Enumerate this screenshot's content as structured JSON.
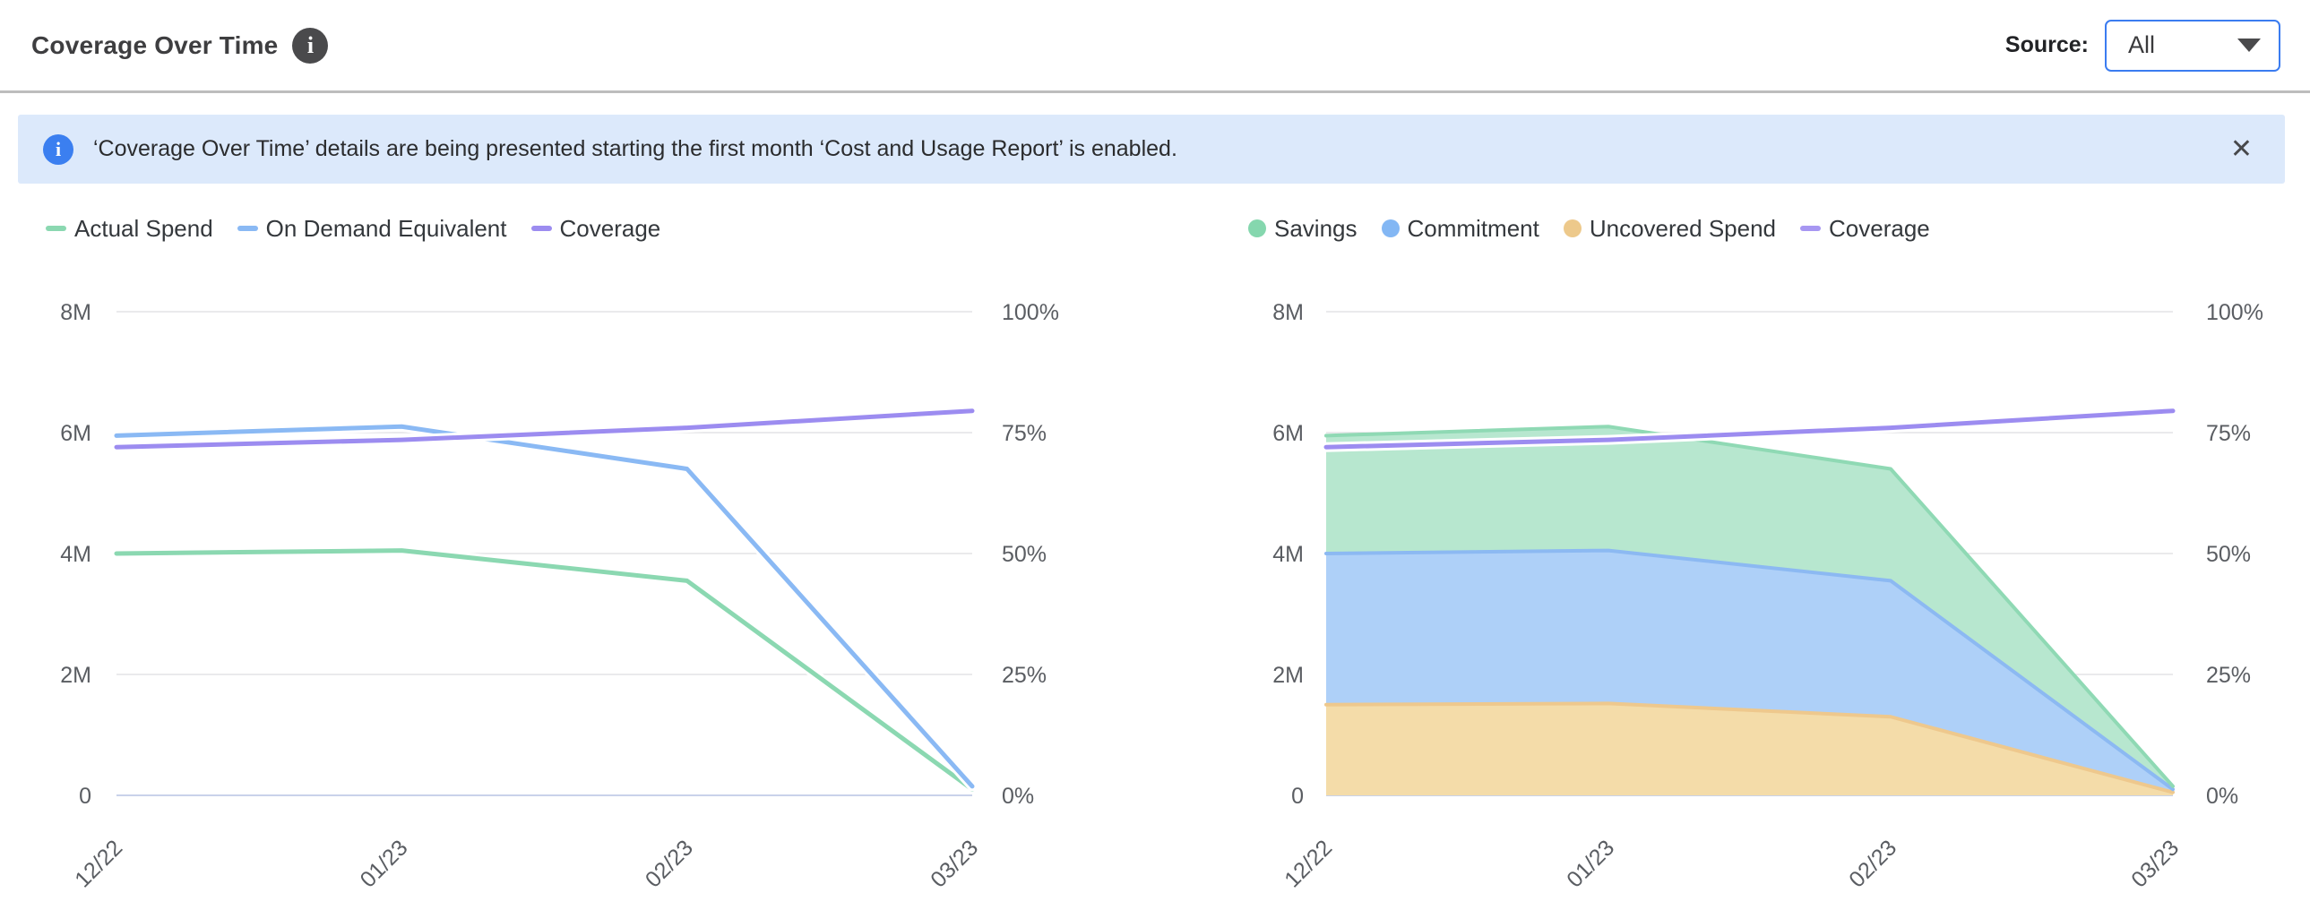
{
  "header": {
    "title": "Coverage Over Time",
    "info_glyph": "i",
    "source_label": "Source:",
    "source_value": "All"
  },
  "banner": {
    "info_glyph": "i",
    "text": "‘Coverage Over Time’ details are being presented starting the first month ‘Cost and Usage Report’ is enabled.",
    "close_glyph": "✕"
  },
  "colors": {
    "green": "#8bd8b1",
    "green_fill": "#b7e7cf",
    "blue": "#8ab9f4",
    "blue_fill": "#aed0f8",
    "orange": "#eec88d",
    "orange_fill": "#f4dca9",
    "purple": "#9c8cf0",
    "banner_bg": "#dce9fb",
    "banner_icon_blue": "#3b7ff0",
    "dropdown_border": "#3b7cf0",
    "grid": "#e4e4e6",
    "baseline": "#c9d2ea",
    "axis_text": "#5a5d62"
  },
  "chart_data": [
    {
      "type": "line",
      "x": [
        "12/22",
        "01/23",
        "02/23",
        "03/23"
      ],
      "left_axis": {
        "max": 8,
        "unit": "M",
        "ticks": [
          "0",
          "2M",
          "4M",
          "6M",
          "8M"
        ]
      },
      "right_axis": {
        "max": 100,
        "unit": "%",
        "ticks": [
          "0%",
          "25%",
          "50%",
          "75%",
          "100%"
        ]
      },
      "grid": true,
      "legend_position": "top-left",
      "series": [
        {
          "name": "Actual Spend",
          "axis": "left",
          "values": [
            4.0,
            4.05,
            3.55,
            0.1
          ],
          "color": "#8bd8b1"
        },
        {
          "name": "On Demand Equivalent",
          "axis": "left",
          "values": [
            5.95,
            6.1,
            5.4,
            0.15
          ],
          "color": "#8ab9f4"
        },
        {
          "name": "Coverage",
          "line": true,
          "axis": "right",
          "values": [
            72,
            73.5,
            76,
            79.5
          ],
          "color": "#9c8cf0"
        }
      ],
      "legend": [
        {
          "label": "Actual Spend",
          "marker": "line",
          "color": "#8bd8b1"
        },
        {
          "label": "On Demand Equivalent",
          "marker": "line",
          "color": "#8ab9f4"
        },
        {
          "label": "Coverage",
          "marker": "line",
          "color": "#9c8cf0"
        }
      ]
    },
    {
      "type": "area",
      "stacked": true,
      "x": [
        "12/22",
        "01/23",
        "02/23",
        "03/23"
      ],
      "left_axis": {
        "max": 8,
        "unit": "M",
        "ticks": [
          "0",
          "2M",
          "4M",
          "6M",
          "8M"
        ]
      },
      "right_axis": {
        "max": 100,
        "unit": "%",
        "ticks": [
          "0%",
          "25%",
          "50%",
          "75%",
          "100%"
        ]
      },
      "grid": true,
      "legend_position": "top-left",
      "series": [
        {
          "name": "Uncovered Spend",
          "axis": "left",
          "values": [
            1.5,
            1.52,
            1.3,
            0.05
          ],
          "color": "#eec88d",
          "fill": "#f4dca9"
        },
        {
          "name": "Commitment",
          "axis": "left",
          "values": [
            2.5,
            2.53,
            2.25,
            0.05
          ],
          "color": "#8cb9f2",
          "fill": "#aed0f8"
        },
        {
          "name": "Savings",
          "axis": "left",
          "values": [
            1.95,
            2.05,
            1.85,
            0.05
          ],
          "color": "#8fd9b4",
          "fill": "#b7e7cf"
        },
        {
          "name": "Coverage",
          "line": true,
          "axis": "right",
          "values": [
            72,
            73.5,
            76,
            79.5
          ],
          "color": "#9c8cf0"
        }
      ],
      "legend": [
        {
          "label": "Savings",
          "marker": "dot",
          "color": "#85d7ae"
        },
        {
          "label": "Commitment",
          "marker": "dot",
          "color": "#83b7f4"
        },
        {
          "label": "Uncovered Spend",
          "marker": "dot",
          "color": "#edc98b"
        },
        {
          "label": "Coverage",
          "marker": "line",
          "color": "#a797f2"
        }
      ]
    }
  ]
}
